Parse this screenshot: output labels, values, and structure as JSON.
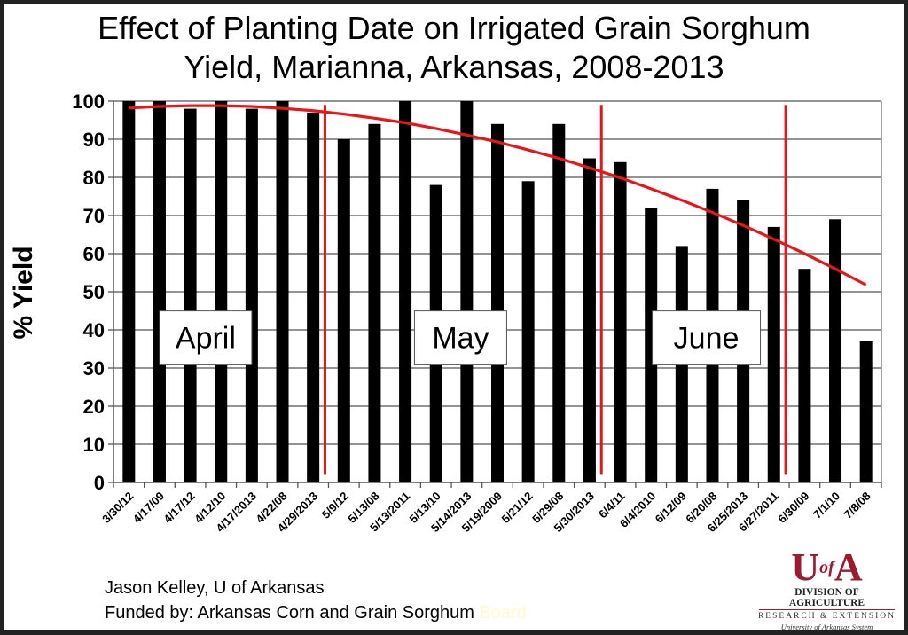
{
  "chart_data": {
    "type": "bar",
    "title": "Effect of Planting Date on Irrigated Grain Sorghum Yield, Marianna, Arkansas, 2008-2013",
    "title_lines": [
      "Effect of Planting Date on Irrigated Grain Sorghum",
      "Yield, Marianna, Arkansas, 2008-2013"
    ],
    "xlabel": "",
    "ylabel": "% Yield",
    "ylim": [
      0,
      100
    ],
    "yticks": [
      0,
      10,
      20,
      30,
      40,
      50,
      60,
      70,
      80,
      90,
      100
    ],
    "grid": true,
    "categories": [
      "3/30/12",
      "4/17/09",
      "4/17/12",
      "4/12/10",
      "4/17/2013",
      "4/22/08",
      "4/29/2013",
      "5/9/12",
      "5/13/08",
      "5/13/2011",
      "5/13/10",
      "5/14/2013",
      "5/19/2009",
      "5/21/12",
      "5/29/08",
      "5/30/2013",
      "6/4/11",
      "6/4/2010",
      "6/12/09",
      "6/20/08",
      "6/25/2013",
      "6/27/2011",
      "6/30/09",
      "7/1/10",
      "7/8/08"
    ],
    "series": [
      {
        "name": "% Yield",
        "type": "bar",
        "color": "#000000",
        "values": [
          100,
          100,
          98,
          100,
          98,
          100,
          97,
          90,
          94,
          100,
          78,
          100,
          94,
          79,
          94,
          85,
          84,
          72,
          62,
          77,
          74,
          67,
          56,
          69,
          37
        ]
      },
      {
        "name": "Trend",
        "type": "line",
        "color": "#e8161b",
        "values": [
          98.2,
          98.6,
          98.8,
          98.8,
          98.6,
          98.1,
          97.5,
          96.6,
          95.5,
          94.3,
          92.8,
          91.1,
          89.3,
          87.2,
          85.0,
          82.5,
          79.9,
          77.0,
          74.0,
          70.8,
          67.4,
          63.8,
          60.0,
          56.0,
          51.8
        ]
      }
    ],
    "month_dividers": [
      {
        "after_category": "4/29/2013"
      },
      {
        "after_category": "5/30/2013"
      },
      {
        "after_category": "6/27/2011"
      }
    ],
    "divider_color": "#e8161b",
    "annotations": [
      {
        "text": "April",
        "center_category_index": 2.5,
        "y": 38
      },
      {
        "text": "May",
        "center_category_index": 10.8,
        "y": 38
      },
      {
        "text": "June",
        "center_category_index": 18.8,
        "y": 38
      }
    ]
  },
  "footer": {
    "credit_line1": "Jason Kelley, U of Arkansas",
    "credit_line2": "Funded by: Arkansas Corn and Grain Sorghum",
    "credit_line2_faded": "Board"
  },
  "logo": {
    "mark_u": "U",
    "mark_of": "of",
    "mark_a": "A",
    "division": "DIVISION OF AGRICULTURE",
    "research": "RESEARCH & EXTENSION",
    "system": "University of Arkansas System",
    "color": "#9b1b30"
  }
}
